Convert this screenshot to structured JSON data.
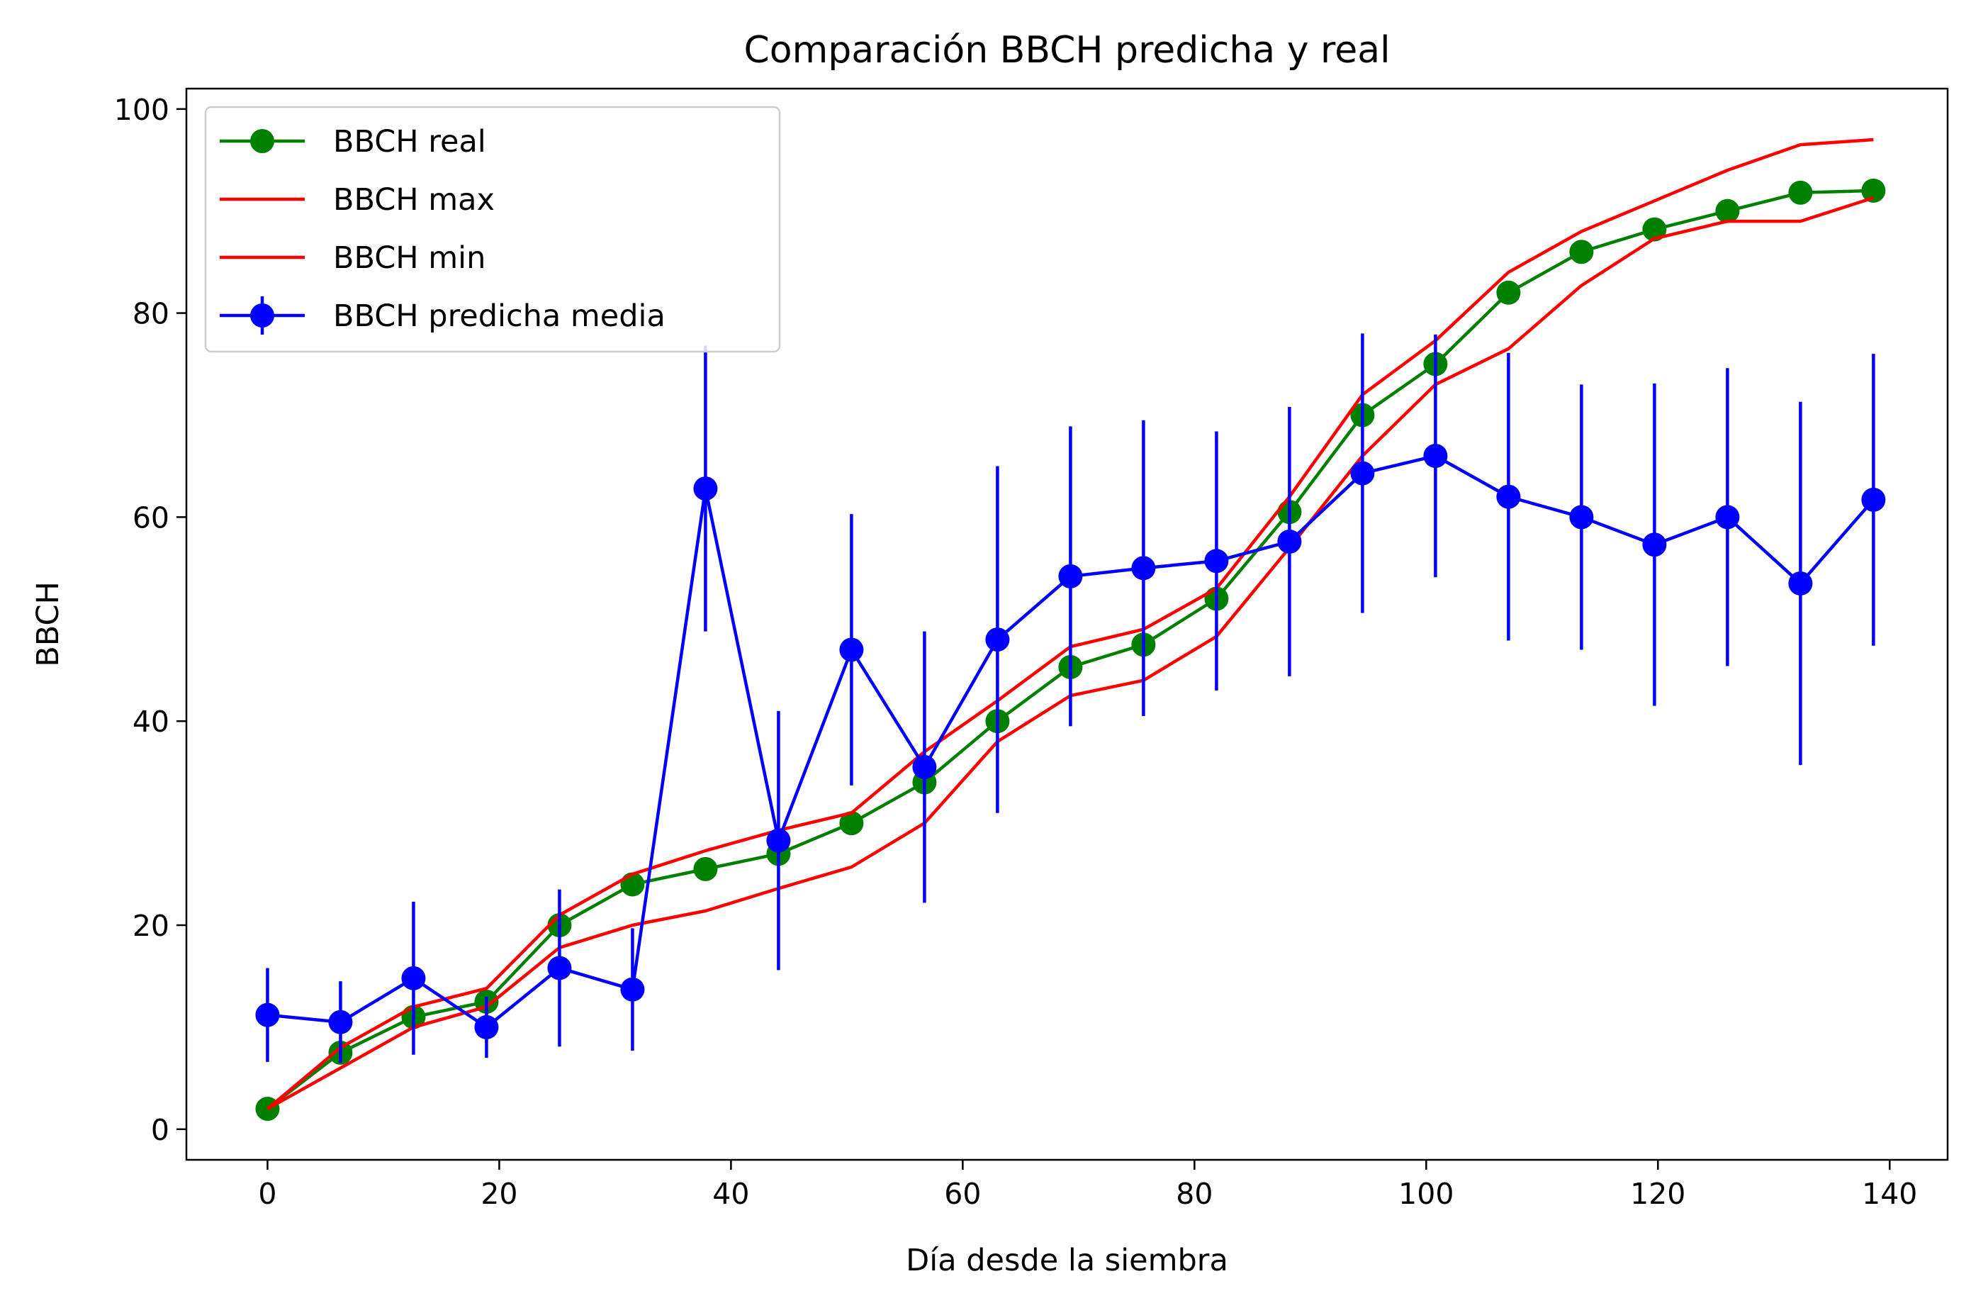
{
  "chart_data": {
    "type": "line",
    "title": "Comparación BBCH predicha y real",
    "xlabel": "Día desde la siembra",
    "ylabel": "BBCH",
    "xlim": [
      -7,
      145
    ],
    "ylim": [
      -3,
      102
    ],
    "xticks": [
      0,
      20,
      40,
      60,
      80,
      100,
      120,
      140
    ],
    "yticks": [
      0,
      20,
      40,
      60,
      80,
      100
    ],
    "grid": false,
    "legend_position": "top-left",
    "x": [
      0,
      6.3,
      12.6,
      18.9,
      25.2,
      31.5,
      37.8,
      44.1,
      50.4,
      56.7,
      63.0,
      69.3,
      75.6,
      81.9,
      88.2,
      94.5,
      100.8,
      107.1,
      113.4,
      119.7,
      126.0,
      132.3,
      138.6
    ],
    "series": [
      {
        "name": "BBCH real",
        "color": "#008000",
        "marker": "circle",
        "values": [
          2,
          7.5,
          11,
          12.5,
          20,
          24,
          25.5,
          27,
          30,
          34,
          40,
          45.3,
          47.5,
          52,
          60.5,
          70,
          75,
          82,
          86,
          88.2,
          90,
          91.8,
          92
        ]
      },
      {
        "name": "BBCH max",
        "color": "#ff0000",
        "marker": "none",
        "values": [
          2,
          8,
          12,
          13.8,
          21,
          25,
          27.3,
          29.3,
          31,
          37,
          42,
          47.3,
          49,
          53,
          62,
          72,
          77.3,
          84,
          88,
          91,
          94,
          96.5,
          97
        ]
      },
      {
        "name": "BBCH min",
        "color": "#ff0000",
        "marker": "none",
        "values": [
          2,
          6,
          10,
          12,
          17.8,
          20,
          21.4,
          23.6,
          25.7,
          30,
          38,
          42.5,
          44,
          48.3,
          57,
          66,
          73,
          76.5,
          82.7,
          87.3,
          89,
          89,
          91.3
        ]
      },
      {
        "name": "BBCH predicha media",
        "color": "#0000ff",
        "marker": "circle",
        "values": [
          11.2,
          10.5,
          14.8,
          10,
          15.8,
          13.7,
          62.8,
          28.3,
          47,
          35.5,
          48,
          54.2,
          55,
          55.7,
          57.6,
          64.3,
          66,
          62,
          60,
          57.3,
          60,
          53.5,
          61.7
        ],
        "error": [
          4.6,
          4,
          7.5,
          3,
          7.7,
          6,
          14,
          12.7,
          13.3,
          13.3,
          17,
          14.7,
          14.5,
          12.7,
          13.2,
          13.7,
          11.9,
          14.1,
          13,
          15.8,
          14.6,
          17.8,
          14.3
        ]
      }
    ]
  }
}
